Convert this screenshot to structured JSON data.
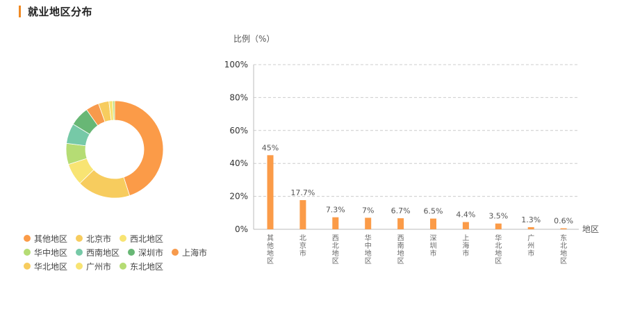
{
  "header": {
    "title": "就业地区分布"
  },
  "colors": {
    "accent": "#f08a24"
  },
  "donut": {
    "slices": [
      {
        "name": "其他地区",
        "value": 45,
        "color": "#fb9b48"
      },
      {
        "name": "北京市",
        "value": 17.7,
        "color": "#f7cc5e"
      },
      {
        "name": "西北地区",
        "value": 7.3,
        "color": "#f8e473"
      },
      {
        "name": "华中地区",
        "value": 7,
        "color": "#b5dc74"
      },
      {
        "name": "西南地区",
        "value": 6.7,
        "color": "#76c9a7"
      },
      {
        "name": "深圳市",
        "value": 6.5,
        "color": "#68b775"
      },
      {
        "name": "上海市",
        "value": 4.4,
        "color": "#f79a4c"
      },
      {
        "name": "华北地区",
        "value": 3.5,
        "color": "#f7cc5e"
      },
      {
        "name": "广州市",
        "value": 1.3,
        "color": "#f8e473"
      },
      {
        "name": "东北地区",
        "value": 0.6,
        "color": "#b5dc74"
      }
    ]
  },
  "legend": {
    "rows": [
      [
        {
          "label": "其他地区",
          "color": "#fb9b48"
        },
        {
          "label": "北京市",
          "color": "#f7cc5e"
        },
        {
          "label": "西北地区",
          "color": "#f8e473"
        }
      ],
      [
        {
          "label": "华中地区",
          "color": "#b5dc74"
        },
        {
          "label": "西南地区",
          "color": "#76c9a7"
        },
        {
          "label": "深圳市",
          "color": "#68b775"
        },
        {
          "label": "上海市",
          "color": "#f79a4c"
        }
      ],
      [
        {
          "label": "华北地区",
          "color": "#f7cc5e"
        },
        {
          "label": "广州市",
          "color": "#f8e473"
        },
        {
          "label": "东北地区",
          "color": "#b5dc74"
        }
      ]
    ]
  },
  "chart_data": {
    "type": "bar",
    "categories": [
      "其他地区",
      "北京市",
      "西北地区",
      "华中地区",
      "西南地区",
      "深圳市",
      "上海市",
      "华北地区",
      "广州市",
      "东北地区"
    ],
    "values": [
      45,
      17.7,
      7.3,
      7,
      6.7,
      6.5,
      4.4,
      3.5,
      1.3,
      0.6
    ],
    "value_labels": [
      "45%",
      "17.7%",
      "7.3%",
      "7%",
      "6.7%",
      "6.5%",
      "4.4%",
      "3.5%",
      "1.3%",
      "0.6%"
    ],
    "ylabel": "比例（%）",
    "xlabel": "地区",
    "ylim": [
      0,
      100
    ],
    "yticks": [
      "0%",
      "20%",
      "40%",
      "60%",
      "80%",
      "100%"
    ],
    "bar_color": "#fb9b48",
    "grid": true
  }
}
